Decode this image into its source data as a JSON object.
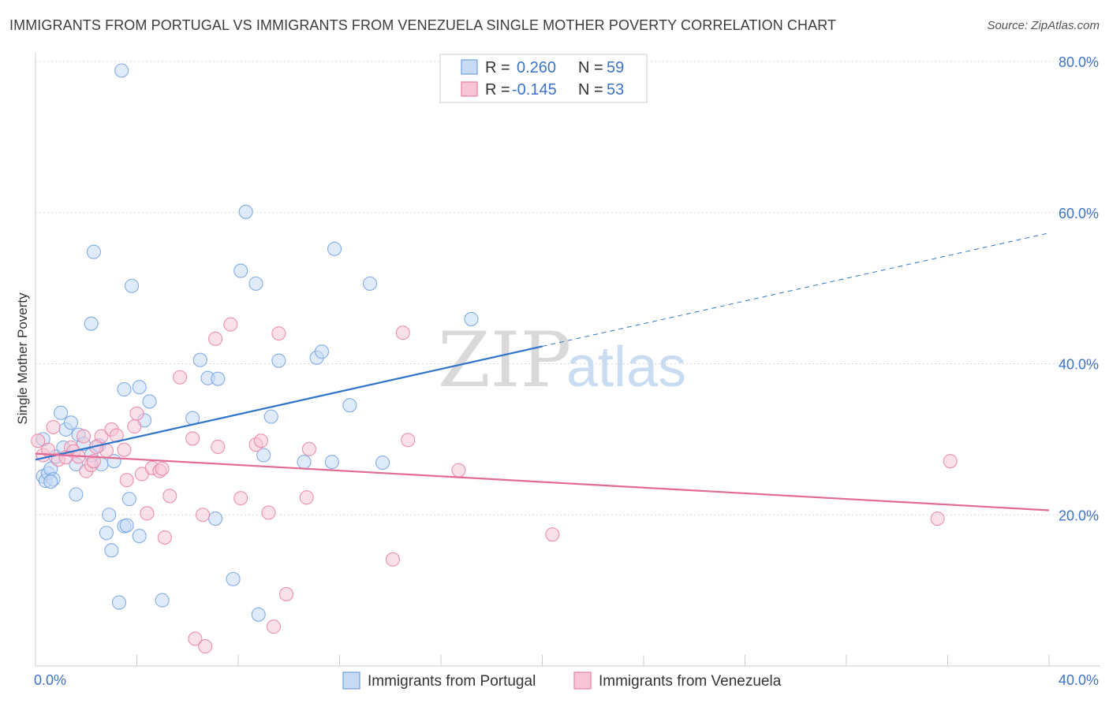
{
  "title": "IMMIGRANTS FROM PORTUGAL VS IMMIGRANTS FROM VENEZUELA SINGLE MOTHER POVERTY CORRELATION CHART",
  "source": "Source: ZipAtlas.com",
  "watermark": {
    "zip": "ZIP",
    "atlas": "atlas"
  },
  "chart_data": {
    "type": "scatter",
    "title": "IMMIGRANTS FROM PORTUGAL VS IMMIGRANTS FROM VENEZUELA SINGLE MOTHER POVERTY CORRELATION CHART",
    "xlabel": "",
    "ylabel": "Single Mother Poverty",
    "xlim": [
      0,
      40
    ],
    "ylim": [
      0,
      80
    ],
    "x_tick_labels": [
      "0.0%",
      "40.0%"
    ],
    "y_ticks": [
      20,
      40,
      60,
      80
    ],
    "y_tick_labels": [
      "20.0%",
      "40.0%",
      "60.0%",
      "80.0%"
    ],
    "grid": true,
    "legend_position": "top-center",
    "legend": [
      {
        "r_label": "R = ",
        "r_value": "0.260",
        "n_label": "N = ",
        "n_value": "59"
      },
      {
        "r_label": "R = ",
        "r_value": "-0.145",
        "n_label": "N = ",
        "n_value": "53"
      }
    ],
    "series": [
      {
        "name": "Immigrants from Portugal",
        "color": "#6f9fe0",
        "fill": "#c7dbf5",
        "line_color": "#2f74c8",
        "trend": {
          "x0": 0,
          "y0": 27.3,
          "x1": 20,
          "y1": 42.3,
          "x_end_dashed": 40,
          "y_end_dashed": 57.3
        },
        "points": [
          [
            0.3,
            30.0
          ],
          [
            0.3,
            25.1
          ],
          [
            0.4,
            24.5
          ],
          [
            0.5,
            25.5
          ],
          [
            0.6,
            26.1
          ],
          [
            0.7,
            24.7
          ],
          [
            0.8,
            27.7
          ],
          [
            1.0,
            33.5
          ],
          [
            1.1,
            28.9
          ],
          [
            1.2,
            31.3
          ],
          [
            1.4,
            32.2
          ],
          [
            1.6,
            26.7
          ],
          [
            1.6,
            22.7
          ],
          [
            1.7,
            30.6
          ],
          [
            1.9,
            29.4
          ],
          [
            2.2,
            45.3
          ],
          [
            2.2,
            27.9
          ],
          [
            2.3,
            54.8
          ],
          [
            2.5,
            29.2
          ],
          [
            2.6,
            26.7
          ],
          [
            2.8,
            17.6
          ],
          [
            2.9,
            20.0
          ],
          [
            3.0,
            15.3
          ],
          [
            3.1,
            27.1
          ],
          [
            3.3,
            8.4
          ],
          [
            3.4,
            78.8
          ],
          [
            3.5,
            18.5
          ],
          [
            3.5,
            36.6
          ],
          [
            3.6,
            18.6
          ],
          [
            3.7,
            22.1
          ],
          [
            3.8,
            50.3
          ],
          [
            4.1,
            17.2
          ],
          [
            4.1,
            36.9
          ],
          [
            4.3,
            32.5
          ],
          [
            4.5,
            35.0
          ],
          [
            5.0,
            8.7
          ],
          [
            6.2,
            32.8
          ],
          [
            6.5,
            40.5
          ],
          [
            6.8,
            38.1
          ],
          [
            7.1,
            19.5
          ],
          [
            7.2,
            38.0
          ],
          [
            7.8,
            11.5
          ],
          [
            8.1,
            52.3
          ],
          [
            8.3,
            60.1
          ],
          [
            8.7,
            50.6
          ],
          [
            8.8,
            6.8
          ],
          [
            9.0,
            27.9
          ],
          [
            9.3,
            33.0
          ],
          [
            9.6,
            40.4
          ],
          [
            10.6,
            27.0
          ],
          [
            11.1,
            40.8
          ],
          [
            11.3,
            41.6
          ],
          [
            11.7,
            27.0
          ],
          [
            11.8,
            55.2
          ],
          [
            12.4,
            34.5
          ],
          [
            13.2,
            50.6
          ],
          [
            13.7,
            26.9
          ],
          [
            17.2,
            45.9
          ],
          [
            0.6,
            24.4
          ]
        ]
      },
      {
        "name": "Immigrants from Venezuela",
        "color": "#e87fa3",
        "fill": "#f6c6d6",
        "line_color": "#e26a95",
        "trend": {
          "x0": 0,
          "y0": 28.1,
          "x1": 40,
          "y1": 20.6
        },
        "points": [
          [
            0.1,
            29.8
          ],
          [
            0.3,
            27.9
          ],
          [
            0.5,
            28.6
          ],
          [
            0.7,
            31.6
          ],
          [
            0.9,
            27.3
          ],
          [
            1.4,
            28.9
          ],
          [
            1.5,
            28.4
          ],
          [
            1.7,
            27.7
          ],
          [
            1.9,
            30.4
          ],
          [
            2.0,
            25.8
          ],
          [
            2.2,
            26.6
          ],
          [
            2.3,
            27.1
          ],
          [
            2.6,
            30.4
          ],
          [
            2.8,
            28.5
          ],
          [
            3.0,
            31.3
          ],
          [
            3.2,
            30.5
          ],
          [
            3.5,
            28.6
          ],
          [
            3.6,
            24.6
          ],
          [
            3.9,
            31.7
          ],
          [
            4.0,
            33.4
          ],
          [
            4.2,
            25.4
          ],
          [
            4.4,
            20.2
          ],
          [
            4.6,
            26.2
          ],
          [
            4.9,
            25.8
          ],
          [
            5.0,
            26.1
          ],
          [
            5.1,
            17.0
          ],
          [
            5.3,
            22.5
          ],
          [
            5.7,
            38.2
          ],
          [
            6.2,
            30.1
          ],
          [
            6.3,
            3.6
          ],
          [
            6.6,
            20.0
          ],
          [
            6.7,
            2.6
          ],
          [
            7.1,
            43.3
          ],
          [
            7.2,
            29.0
          ],
          [
            7.7,
            45.2
          ],
          [
            8.1,
            22.2
          ],
          [
            8.7,
            29.3
          ],
          [
            8.9,
            29.8
          ],
          [
            9.2,
            20.3
          ],
          [
            9.4,
            5.2
          ],
          [
            9.6,
            44.0
          ],
          [
            9.9,
            9.5
          ],
          [
            10.7,
            22.3
          ],
          [
            10.8,
            28.7
          ],
          [
            14.1,
            14.1
          ],
          [
            14.5,
            44.1
          ],
          [
            14.7,
            29.9
          ],
          [
            16.7,
            25.9
          ],
          [
            20.4,
            17.4
          ],
          [
            35.6,
            19.5
          ],
          [
            36.1,
            27.1
          ],
          [
            1.2,
            27.6
          ],
          [
            2.4,
            29.0
          ]
        ]
      }
    ]
  }
}
